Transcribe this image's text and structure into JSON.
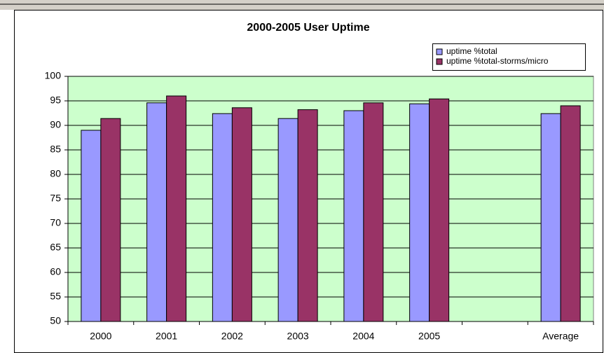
{
  "chart_data": {
    "type": "bar",
    "title": "2000-2005 User Uptime",
    "categories": [
      "2000",
      "2001",
      "2002",
      "2003",
      "2004",
      "2005",
      null,
      "Average"
    ],
    "series": [
      {
        "name": "uptime %total",
        "color": "#9999ff",
        "values": [
          89,
          94.6,
          92.4,
          91.4,
          93,
          94.4,
          null,
          92.4
        ]
      },
      {
        "name": "uptime %total-storms/micro",
        "color": "#993366",
        "values": [
          91.4,
          96,
          93.6,
          93.2,
          94.6,
          95.4,
          null,
          94
        ]
      }
    ],
    "ylim": [
      50,
      100
    ],
    "yticks": [
      50,
      55,
      60,
      65,
      70,
      75,
      80,
      85,
      90,
      95,
      100
    ],
    "grid": true,
    "plot_background": "#ccffcc"
  }
}
